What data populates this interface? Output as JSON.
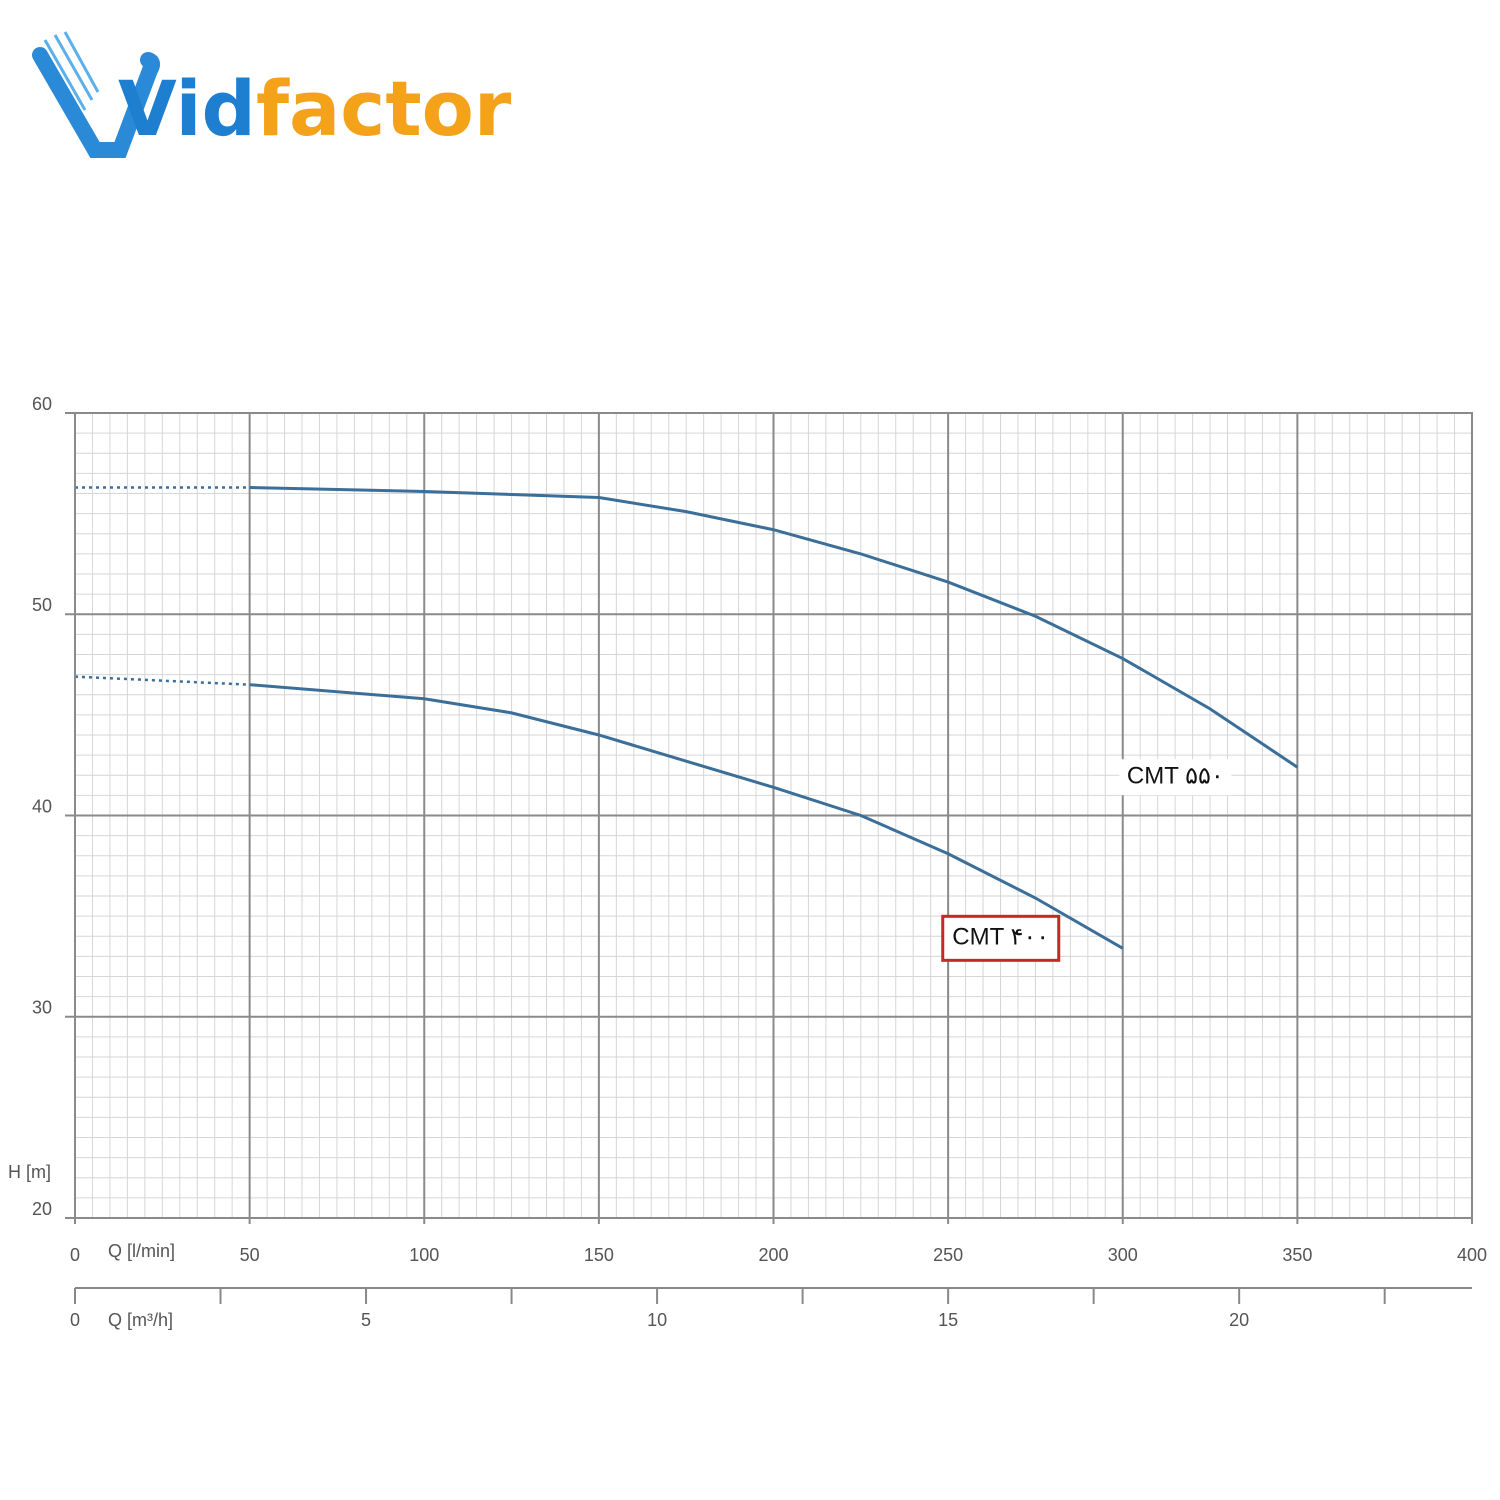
{
  "logo": {
    "parts": [
      "Vid",
      "factor"
    ]
  },
  "chart_data": {
    "type": "line",
    "ylabel": "H [m]",
    "xlabel": "Q [l/min]",
    "x2label": "Q [m³/h]",
    "xlim": [
      0,
      400
    ],
    "xticks": [
      0,
      50,
      100,
      150,
      200,
      250,
      300,
      350,
      400
    ],
    "ylim": [
      20,
      60
    ],
    "yticks": [
      20,
      30,
      40,
      50,
      60
    ],
    "x2lim": [
      0,
      24
    ],
    "x2ticks": [
      0,
      5,
      10,
      15,
      20
    ],
    "x2minor_ticks": [
      2.5,
      7.5,
      12.5,
      17.5,
      22.5
    ],
    "grid": true,
    "minor_grid": {
      "x": 5,
      "y": 1
    },
    "dotted_first_segment": true,
    "series": [
      {
        "name": "CMT ۵۵۰",
        "color": "#3b6e98",
        "x": [
          0,
          50,
          100,
          150,
          175,
          200,
          225,
          250,
          275,
          300,
          325,
          350
        ],
        "values": [
          56.3,
          56.3,
          56.1,
          55.8,
          55.1,
          54.2,
          53.0,
          51.6,
          49.9,
          47.8,
          45.3,
          42.4
        ]
      },
      {
        "name": "CMT ۴۰۰",
        "color": "#3b6e98",
        "highlight": true,
        "x": [
          0,
          50,
          100,
          125,
          150,
          175,
          200,
          225,
          250,
          275,
          300
        ],
        "values": [
          46.9,
          46.5,
          45.8,
          45.1,
          44.0,
          42.7,
          41.4,
          40.0,
          38.1,
          35.9,
          33.4
        ]
      }
    ]
  }
}
